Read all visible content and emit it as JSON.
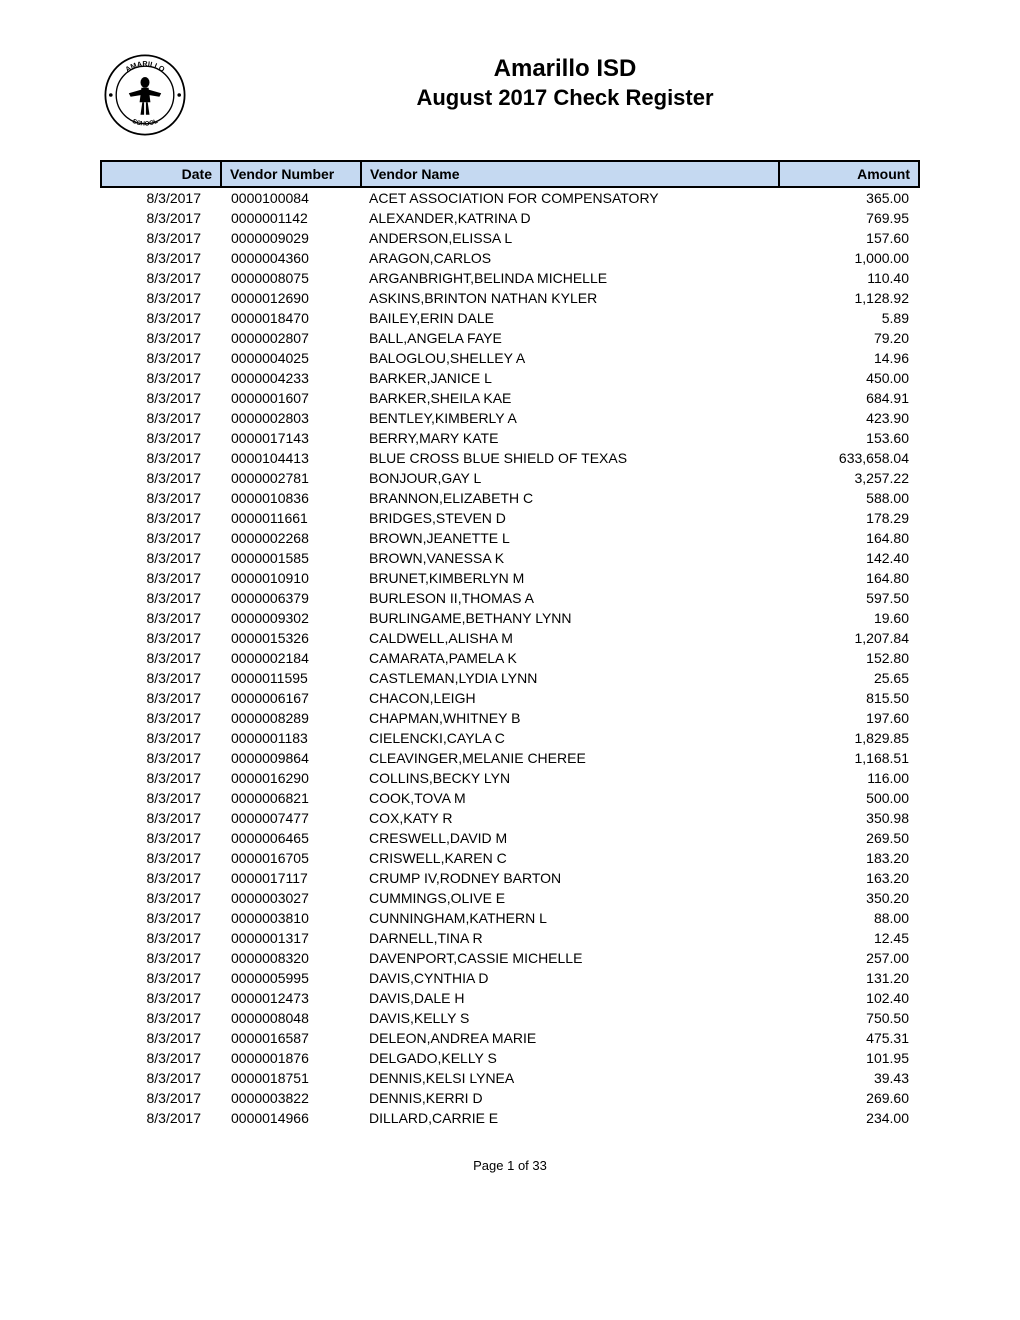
{
  "header": {
    "title_main": "Amarillo ISD",
    "title_sub": "August 2017 Check Register",
    "logo_text_top": "AMARILLO",
    "logo_text_left": "INDEPENDENT",
    "logo_text_right": "DISTRICT",
    "logo_text_bottom": "SCHOOL"
  },
  "table": {
    "columns": [
      "Date",
      "Vendor Number",
      "Vendor Name",
      "Amount"
    ],
    "header_bg": "#c5d9f1",
    "header_border": "#000000",
    "rows": [
      [
        "8/3/2017",
        "0000100084",
        "ACET ASSOCIATION FOR COMPENSATORY",
        "365.00"
      ],
      [
        "8/3/2017",
        "0000001142",
        "ALEXANDER,KATRINA D",
        "769.95"
      ],
      [
        "8/3/2017",
        "0000009029",
        "ANDERSON,ELISSA L",
        "157.60"
      ],
      [
        "8/3/2017",
        "0000004360",
        "ARAGON,CARLOS",
        "1,000.00"
      ],
      [
        "8/3/2017",
        "0000008075",
        "ARGANBRIGHT,BELINDA MICHELLE",
        "110.40"
      ],
      [
        "8/3/2017",
        "0000012690",
        "ASKINS,BRINTON NATHAN KYLER",
        "1,128.92"
      ],
      [
        "8/3/2017",
        "0000018470",
        "BAILEY,ERIN DALE",
        "5.89"
      ],
      [
        "8/3/2017",
        "0000002807",
        "BALL,ANGELA FAYE",
        "79.20"
      ],
      [
        "8/3/2017",
        "0000004025",
        "BALOGLOU,SHELLEY A",
        "14.96"
      ],
      [
        "8/3/2017",
        "0000004233",
        "BARKER,JANICE L",
        "450.00"
      ],
      [
        "8/3/2017",
        "0000001607",
        "BARKER,SHEILA KAE",
        "684.91"
      ],
      [
        "8/3/2017",
        "0000002803",
        "BENTLEY,KIMBERLY A",
        "423.90"
      ],
      [
        "8/3/2017",
        "0000017143",
        "BERRY,MARY KATE",
        "153.60"
      ],
      [
        "8/3/2017",
        "0000104413",
        "BLUE CROSS BLUE SHIELD OF TEXAS",
        "633,658.04"
      ],
      [
        "8/3/2017",
        "0000002781",
        "BONJOUR,GAY L",
        "3,257.22"
      ],
      [
        "8/3/2017",
        "0000010836",
        "BRANNON,ELIZABETH C",
        "588.00"
      ],
      [
        "8/3/2017",
        "0000011661",
        "BRIDGES,STEVEN D",
        "178.29"
      ],
      [
        "8/3/2017",
        "0000002268",
        "BROWN,JEANETTE L",
        "164.80"
      ],
      [
        "8/3/2017",
        "0000001585",
        "BROWN,VANESSA K",
        "142.40"
      ],
      [
        "8/3/2017",
        "0000010910",
        "BRUNET,KIMBERLYN M",
        "164.80"
      ],
      [
        "8/3/2017",
        "0000006379",
        "BURLESON II,THOMAS A",
        "597.50"
      ],
      [
        "8/3/2017",
        "0000009302",
        "BURLINGAME,BETHANY LYNN",
        "19.60"
      ],
      [
        "8/3/2017",
        "0000015326",
        "CALDWELL,ALISHA M",
        "1,207.84"
      ],
      [
        "8/3/2017",
        "0000002184",
        "CAMARATA,PAMELA K",
        "152.80"
      ],
      [
        "8/3/2017",
        "0000011595",
        "CASTLEMAN,LYDIA LYNN",
        "25.65"
      ],
      [
        "8/3/2017",
        "0000006167",
        "CHACON,LEIGH",
        "815.50"
      ],
      [
        "8/3/2017",
        "0000008289",
        "CHAPMAN,WHITNEY B",
        "197.60"
      ],
      [
        "8/3/2017",
        "0000001183",
        "CIELENCKI,CAYLA C",
        "1,829.85"
      ],
      [
        "8/3/2017",
        "0000009864",
        "CLEAVINGER,MELANIE CHEREE",
        "1,168.51"
      ],
      [
        "8/3/2017",
        "0000016290",
        "COLLINS,BECKY LYN",
        "116.00"
      ],
      [
        "8/3/2017",
        "0000006821",
        "COOK,TOVA M",
        "500.00"
      ],
      [
        "8/3/2017",
        "0000007477",
        "COX,KATY R",
        "350.98"
      ],
      [
        "8/3/2017",
        "0000006465",
        "CRESWELL,DAVID M",
        "269.50"
      ],
      [
        "8/3/2017",
        "0000016705",
        "CRISWELL,KAREN C",
        "183.20"
      ],
      [
        "8/3/2017",
        "0000017117",
        "CRUMP IV,RODNEY BARTON",
        "163.20"
      ],
      [
        "8/3/2017",
        "0000003027",
        "CUMMINGS,OLIVE E",
        "350.20"
      ],
      [
        "8/3/2017",
        "0000003810",
        "CUNNINGHAM,KATHERN L",
        "88.00"
      ],
      [
        "8/3/2017",
        "0000001317",
        "DARNELL,TINA R",
        "12.45"
      ],
      [
        "8/3/2017",
        "0000008320",
        "DAVENPORT,CASSIE MICHELLE",
        "257.00"
      ],
      [
        "8/3/2017",
        "0000005995",
        "DAVIS,CYNTHIA D",
        "131.20"
      ],
      [
        "8/3/2017",
        "0000012473",
        "DAVIS,DALE H",
        "102.40"
      ],
      [
        "8/3/2017",
        "0000008048",
        "DAVIS,KELLY S",
        "750.50"
      ],
      [
        "8/3/2017",
        "0000016587",
        "DELEON,ANDREA MARIE",
        "475.31"
      ],
      [
        "8/3/2017",
        "0000001876",
        "DELGADO,KELLY S",
        "101.95"
      ],
      [
        "8/3/2017",
        "0000018751",
        "DENNIS,KELSI LYNEA",
        "39.43"
      ],
      [
        "8/3/2017",
        "0000003822",
        "DENNIS,KERRI D",
        "269.60"
      ],
      [
        "8/3/2017",
        "0000014966",
        "DILLARD,CARRIE E",
        "234.00"
      ]
    ]
  },
  "footer": {
    "page_text": "Page 1 of 33"
  }
}
